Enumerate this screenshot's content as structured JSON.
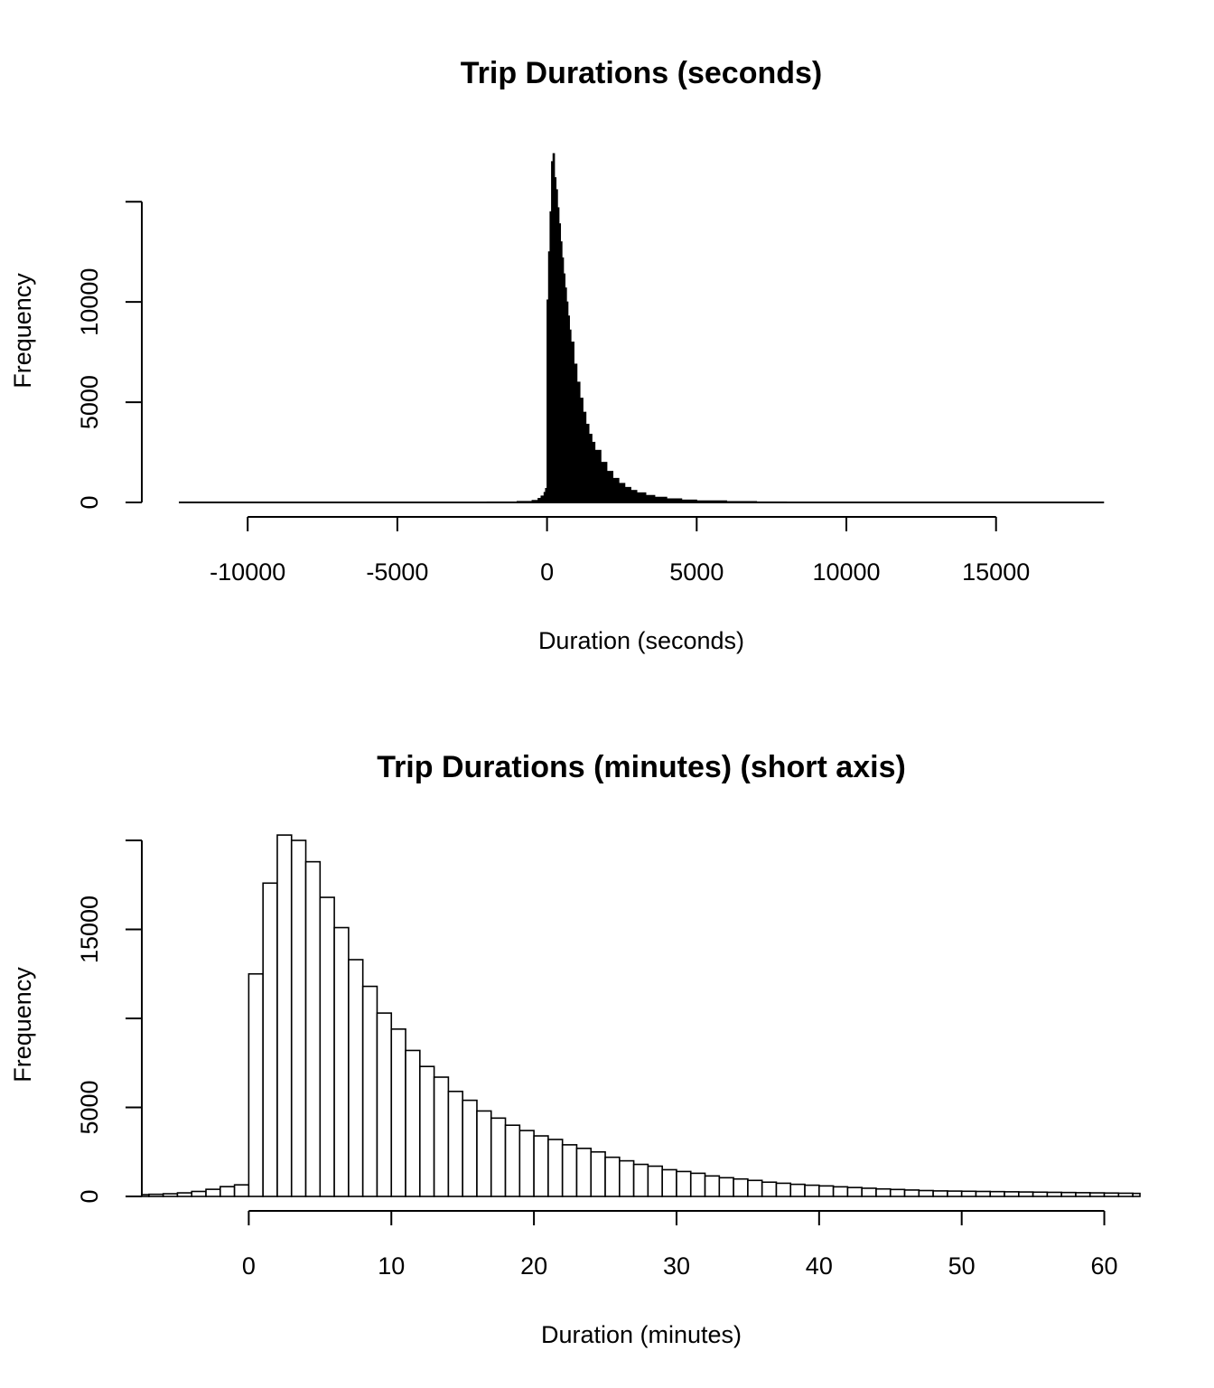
{
  "colors": {
    "background": "#ffffff",
    "ink": "#000000",
    "bar_fill_top": "#000000",
    "bar_fill_bottom": "#ffffff"
  },
  "chart_data": [
    {
      "type": "bar",
      "subtype": "histogram",
      "title": "Trip Durations (seconds)",
      "xlabel": "Duration (seconds)",
      "ylabel": "Frequency",
      "xlim": [
        -12300,
        18600
      ],
      "ylim": [
        0,
        17400
      ],
      "x_ticks": [
        -10000,
        -5000,
        0,
        5000,
        10000,
        15000
      ],
      "x_tick_labels": [
        "-10000",
        "-5000",
        "0",
        "5000",
        "10000",
        "15000"
      ],
      "y_ticks": [
        0,
        5000,
        10000,
        15000
      ],
      "y_tick_labels": [
        "0",
        "5000",
        "10000",
        ""
      ],
      "grid": false,
      "bins": [
        {
          "x": -12000,
          "y": 0
        },
        {
          "x": -8000,
          "y": 3
        },
        {
          "x": -4000,
          "y": 10
        },
        {
          "x": -2000,
          "y": 25
        },
        {
          "x": -1000,
          "y": 50
        },
        {
          "x": -500,
          "y": 100
        },
        {
          "x": -300,
          "y": 200
        },
        {
          "x": -200,
          "y": 320
        },
        {
          "x": -100,
          "y": 500
        },
        {
          "x": -50,
          "y": 700
        },
        {
          "x": 0,
          "y": 10100
        },
        {
          "x": 50,
          "y": 12500
        },
        {
          "x": 100,
          "y": 14500
        },
        {
          "x": 150,
          "y": 17000
        },
        {
          "x": 200,
          "y": 17400
        },
        {
          "x": 250,
          "y": 16200
        },
        {
          "x": 300,
          "y": 15600
        },
        {
          "x": 350,
          "y": 14700
        },
        {
          "x": 400,
          "y": 13900
        },
        {
          "x": 450,
          "y": 13000
        },
        {
          "x": 500,
          "y": 12200
        },
        {
          "x": 550,
          "y": 11400
        },
        {
          "x": 600,
          "y": 10700
        },
        {
          "x": 650,
          "y": 10000
        },
        {
          "x": 700,
          "y": 9300
        },
        {
          "x": 750,
          "y": 8600
        },
        {
          "x": 800,
          "y": 8000
        },
        {
          "x": 900,
          "y": 6900
        },
        {
          "x": 1000,
          "y": 6000
        },
        {
          "x": 1100,
          "y": 5200
        },
        {
          "x": 1200,
          "y": 4500
        },
        {
          "x": 1300,
          "y": 3900
        },
        {
          "x": 1400,
          "y": 3400
        },
        {
          "x": 1500,
          "y": 3000
        },
        {
          "x": 1600,
          "y": 2600
        },
        {
          "x": 1800,
          "y": 2000
        },
        {
          "x": 2000,
          "y": 1550
        },
        {
          "x": 2200,
          "y": 1200
        },
        {
          "x": 2400,
          "y": 950
        },
        {
          "x": 2600,
          "y": 750
        },
        {
          "x": 2800,
          "y": 600
        },
        {
          "x": 3000,
          "y": 480
        },
        {
          "x": 3300,
          "y": 350
        },
        {
          "x": 3600,
          "y": 260
        },
        {
          "x": 4000,
          "y": 180
        },
        {
          "x": 4500,
          "y": 120
        },
        {
          "x": 5000,
          "y": 80
        },
        {
          "x": 6000,
          "y": 45
        },
        {
          "x": 7000,
          "y": 25
        },
        {
          "x": 8000,
          "y": 15
        },
        {
          "x": 10000,
          "y": 6
        },
        {
          "x": 13000,
          "y": 2
        },
        {
          "x": 18600,
          "y": 0
        }
      ]
    },
    {
      "type": "bar",
      "subtype": "histogram",
      "title": "Trip Durations (minutes) (short axis)",
      "xlabel": "Duration (minutes)",
      "ylabel": "Frequency",
      "xlim": [
        -7.5,
        62.5
      ],
      "ylim": [
        0,
        20000
      ],
      "bin_width": 1,
      "x_ticks": [
        0,
        10,
        20,
        30,
        40,
        50,
        60
      ],
      "x_tick_labels": [
        "0",
        "10",
        "20",
        "30",
        "40",
        "50",
        "60"
      ],
      "y_ticks": [
        0,
        5000,
        10000,
        15000,
        20000
      ],
      "y_tick_labels": [
        "0",
        "5000",
        "",
        "15000",
        ""
      ],
      "grid": false,
      "bin_starts": [
        -8,
        -7,
        -6,
        -5,
        -4,
        -3,
        -2,
        -1,
        0,
        1,
        2,
        3,
        4,
        5,
        6,
        7,
        8,
        9,
        10,
        11,
        12,
        13,
        14,
        15,
        16,
        17,
        18,
        19,
        20,
        21,
        22,
        23,
        24,
        25,
        26,
        27,
        28,
        29,
        30,
        31,
        32,
        33,
        34,
        35,
        36,
        37,
        38,
        39,
        40,
        41,
        42,
        43,
        44,
        45,
        46,
        47,
        48,
        49,
        50,
        51,
        52,
        53,
        54,
        55,
        56,
        57,
        58,
        59,
        60,
        61,
        62
      ],
      "values": [
        100,
        120,
        150,
        200,
        280,
        400,
        550,
        650,
        12500,
        17600,
        20300,
        20000,
        18800,
        16800,
        15100,
        13300,
        11800,
        10300,
        9400,
        8200,
        7300,
        6700,
        5900,
        5400,
        4800,
        4400,
        4000,
        3700,
        3400,
        3200,
        2900,
        2700,
        2500,
        2200,
        2000,
        1800,
        1700,
        1500,
        1400,
        1300,
        1150,
        1050,
        980,
        900,
        800,
        740,
        680,
        630,
        590,
        540,
        500,
        460,
        420,
        390,
        360,
        330,
        310,
        300,
        290,
        280,
        270,
        260,
        250,
        240,
        230,
        220,
        210,
        200,
        190,
        180,
        170
      ]
    }
  ]
}
